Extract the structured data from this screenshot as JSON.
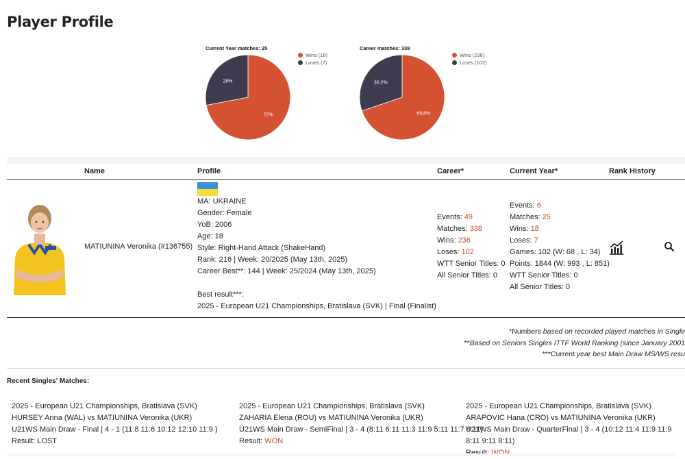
{
  "page": {
    "title": "Player Profile"
  },
  "charts": [
    {
      "type": "pie",
      "title": "Current Year matches: 25",
      "slices": [
        {
          "name": "Wins (18)",
          "value": 72,
          "label": "72%",
          "color": "#d45131"
        },
        {
          "name": "Loses (7)",
          "value": 28,
          "label": "28%",
          "color": "#3d3b4d"
        }
      ]
    },
    {
      "type": "pie",
      "title": "Career matches: 338",
      "slices": [
        {
          "name": "Wins (236)",
          "value": 69.8,
          "label": "69.8%",
          "color": "#d45131"
        },
        {
          "name": "Loses (102)",
          "value": 30.2,
          "label": "30.2%",
          "color": "#3d3b4d"
        }
      ]
    }
  ],
  "table": {
    "headers": {
      "name": "Name",
      "profile": "Profile",
      "career": "Career*",
      "current_year": "Current Year*",
      "rank_history": "Rank History"
    },
    "player": {
      "name": "MATIUNINA Veronika (#136755)",
      "profile_lines": [
        "MA: UKRAINE",
        "Gender: Female",
        "YoB: 2006",
        "Age: 18",
        "Style: Right-Hand Attack (ShakeHand)",
        "Rank: 216 | Week: 20/2025 (May 13th, 2025)",
        "Career Best**: 144 | Week: 25/2024 (May 13th, 2025)"
      ],
      "best_result_label": "Best result***:",
      "best_result": "2025 - European U21 Championships, Bratislava (SVK) | Final (Finalist)",
      "career": {
        "events_label": "Events: ",
        "events": "49",
        "matches_label": "Matches: ",
        "matches": "338",
        "wins_label": "Wins: ",
        "wins": "236",
        "loses_label": "Loses: ",
        "loses": "102",
        "wtt": "WTT Senior Titles: 0",
        "all_senior": "All Senior Titles: 0"
      },
      "current_year": {
        "events_label": "Events: ",
        "events": "6",
        "matches_label": "Matches: ",
        "matches": "25",
        "wins_label": "Wins: ",
        "wins": "18",
        "loses_label": "Loses: ",
        "loses": "7",
        "games": "Games: 102 (W: 68 , L: 34)",
        "points": "Points: 1844 (W: 993 , L: 851)",
        "wtt": "WTT Senior Titles: 0",
        "all_senior": "All Senior Titles: 0"
      }
    }
  },
  "notes": {
    "n1_plain": "*Numbers ",
    "n1_italic": "based on recorded played matches in Single",
    "n2_plain": "**",
    "n2_italic": "Based on Seniors Singles ITTF World Ranking (since January 2001",
    "n3_plain": "***Current ",
    "n3_italic": "year best Main Draw MS/WS resu"
  },
  "recent": {
    "title": "Recent Singles' Matches:",
    "result_label": "Result: ",
    "matches": [
      {
        "event": "2025 - European U21 Championships, Bratislava (SVK)",
        "players": "HURSEY Anna (WAL) vs MATIUNINA Veronika (UKR)",
        "detail": "U21WS Main Draw - Final | 4 - 1 (11:8 11:6 10:12 12:10 11:9 )",
        "result": "LOST"
      },
      {
        "event": "2025 - European U21 Championships, Bratislava (SVK)",
        "players": "ZAHARIA Elena (ROU) vs MATIUNINA Veronika (UKR)",
        "detail": "U21WS Main Draw - SemiFinal | 3 - 4 (8:11 6:11 11:3 11:9 5:11 11:7 8:11)",
        "result": "WON"
      },
      {
        "event": "2025 - European U21 Championships, Bratislava (SVK)",
        "players": "ARAPOVIC Hana (CRO) vs MATIUNINA Veronika (UKR)",
        "detail": "U21WS Main Draw - QuarterFinal | 3 - 4 (10:12 11:4 11:9 11:9 8:11 9:11 8:11)",
        "result": "WON"
      }
    ]
  },
  "icons": {
    "rank_history": "chart-icon",
    "search": "search-icon",
    "flag": "ukraine-flag-icon"
  }
}
